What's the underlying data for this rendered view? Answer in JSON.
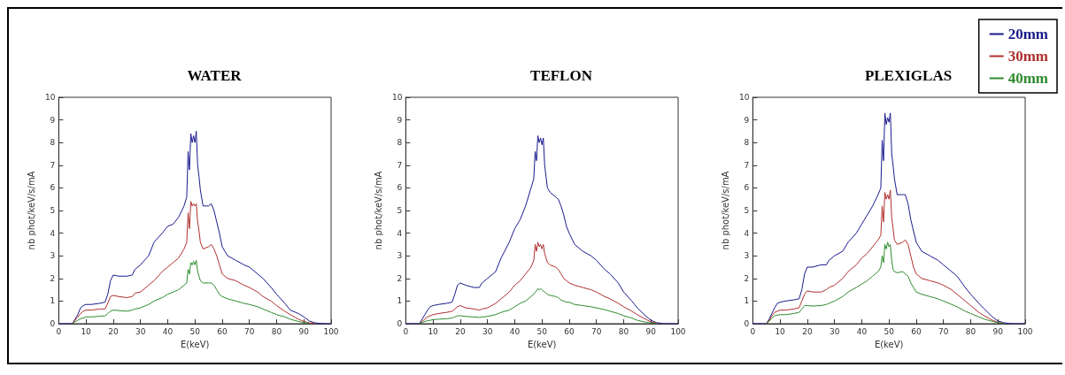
{
  "chart_data": [
    {
      "type": "line",
      "title": "WATER",
      "xlabel": "E(keV)",
      "ylabel": "nb phot/keV/s/mA",
      "xlim": [
        0,
        100
      ],
      "xticks": [
        0,
        10,
        20,
        30,
        40,
        50,
        60,
        70,
        80,
        90,
        100
      ],
      "ylim": [
        0,
        10
      ],
      "yticks": [
        0,
        1,
        2,
        3,
        4,
        5,
        6,
        7,
        8,
        9,
        10
      ],
      "grid": false,
      "legend": false,
      "marker": "none",
      "line_style": "solid",
      "x": [
        0,
        5,
        6,
        7,
        8,
        9,
        10,
        12,
        15,
        17,
        18,
        19,
        20,
        22,
        25,
        27,
        28,
        30,
        33,
        35,
        38,
        40,
        42,
        44,
        46,
        47,
        47.5,
        48,
        48.5,
        49,
        49.5,
        50,
        50.5,
        51,
        51.5,
        52,
        53,
        55,
        56,
        57,
        58,
        59,
        60,
        62,
        65,
        68,
        70,
        73,
        75,
        78,
        80,
        83,
        85,
        88,
        90,
        92,
        94,
        96,
        98,
        100
      ],
      "series": [
        {
          "color": "#1a1a8c",
          "values": [
            0,
            0,
            0.2,
            0.4,
            0.7,
            0.8,
            0.85,
            0.85,
            0.9,
            0.95,
            1.3,
            1.9,
            2.15,
            2.1,
            2.1,
            2.15,
            2.4,
            2.6,
            3.0,
            3.6,
            4.0,
            4.3,
            4.4,
            4.7,
            5.2,
            5.6,
            7.6,
            6.8,
            8.4,
            8.0,
            8.3,
            8.0,
            8.5,
            7.0,
            6.5,
            5.9,
            5.2,
            5.2,
            5.3,
            5.0,
            4.5,
            4.0,
            3.4,
            3.0,
            2.8,
            2.6,
            2.5,
            2.2,
            2.0,
            1.6,
            1.3,
            0.9,
            0.6,
            0.45,
            0.3,
            0.12,
            0.04,
            0.01,
            0,
            0
          ]
        },
        {
          "color": "#b03030",
          "values": [
            null,
            0,
            0.15,
            0.3,
            0.45,
            0.55,
            0.6,
            0.6,
            0.65,
            0.65,
            0.9,
            1.2,
            1.25,
            1.2,
            1.15,
            1.2,
            1.35,
            1.4,
            1.7,
            1.9,
            2.3,
            2.5,
            2.7,
            2.9,
            3.3,
            3.6,
            4.9,
            4.2,
            5.4,
            5.2,
            5.3,
            5.2,
            5.3,
            4.5,
            4.1,
            3.6,
            3.3,
            3.4,
            3.5,
            3.3,
            3.0,
            2.6,
            2.2,
            2.0,
            1.9,
            1.7,
            1.6,
            1.4,
            1.2,
            1.0,
            0.8,
            0.55,
            0.4,
            0.2,
            0.1,
            0.04,
            0.01,
            null,
            null,
            null
          ]
        },
        {
          "color": "#2e8b2e",
          "values": [
            null,
            0,
            0.08,
            0.15,
            0.22,
            0.25,
            0.3,
            0.3,
            0.33,
            0.35,
            0.45,
            0.55,
            0.6,
            0.58,
            0.55,
            0.6,
            0.65,
            0.7,
            0.85,
            1.0,
            1.15,
            1.3,
            1.4,
            1.5,
            1.7,
            1.8,
            2.4,
            2.2,
            2.7,
            2.6,
            2.75,
            2.6,
            2.8,
            2.3,
            2.1,
            1.9,
            1.8,
            1.8,
            1.8,
            1.7,
            1.5,
            1.3,
            1.2,
            1.1,
            1.0,
            0.9,
            0.85,
            0.75,
            0.65,
            0.5,
            0.4,
            0.3,
            0.2,
            0.1,
            0.05,
            0.02,
            null,
            null,
            null,
            null
          ]
        }
      ]
    },
    {
      "type": "line",
      "title": "TEFLON",
      "xlabel": "E(keV)",
      "ylabel": "nb phot/keV/s/mA",
      "xlim": [
        0,
        100
      ],
      "xticks": [
        0,
        10,
        20,
        30,
        40,
        50,
        60,
        70,
        80,
        90,
        100
      ],
      "ylim": [
        0,
        10
      ],
      "yticks": [
        0,
        1,
        2,
        3,
        4,
        5,
        6,
        7,
        8,
        9,
        10
      ],
      "grid": false,
      "legend": false,
      "marker": "none",
      "line_style": "solid",
      "x": [
        0,
        5,
        6,
        7,
        8,
        9,
        10,
        12,
        15,
        17,
        18,
        19,
        20,
        22,
        25,
        27,
        28,
        30,
        33,
        35,
        38,
        40,
        42,
        44,
        46,
        47,
        47.5,
        48,
        48.5,
        49,
        49.5,
        50,
        50.5,
        51,
        51.5,
        52,
        53,
        55,
        56,
        57,
        58,
        59,
        60,
        62,
        65,
        68,
        70,
        73,
        75,
        78,
        80,
        83,
        85,
        88,
        90,
        92,
        94,
        96,
        98,
        100
      ],
      "series": [
        {
          "color": "#1a1a8c",
          "values": [
            0,
            0,
            0.2,
            0.4,
            0.6,
            0.75,
            0.8,
            0.85,
            0.9,
            0.95,
            1.3,
            1.7,
            1.8,
            1.7,
            1.6,
            1.6,
            1.8,
            2.0,
            2.3,
            2.9,
            3.6,
            4.2,
            4.6,
            5.2,
            6.0,
            6.4,
            7.6,
            7.2,
            8.3,
            8.0,
            8.2,
            7.9,
            8.2,
            7.0,
            6.5,
            6.0,
            5.8,
            5.6,
            5.5,
            5.2,
            4.8,
            4.3,
            4.0,
            3.5,
            3.2,
            3.0,
            2.8,
            2.4,
            2.2,
            1.8,
            1.4,
            1.0,
            0.7,
            0.35,
            0.15,
            0.05,
            0.01,
            0,
            0,
            0
          ]
        },
        {
          "color": "#b03030",
          "values": [
            null,
            0,
            0.1,
            0.2,
            0.3,
            0.35,
            0.4,
            0.45,
            0.5,
            0.55,
            0.65,
            0.75,
            0.8,
            0.7,
            0.65,
            0.6,
            0.65,
            0.7,
            0.9,
            1.1,
            1.4,
            1.7,
            1.9,
            2.2,
            2.5,
            2.8,
            3.5,
            3.2,
            3.6,
            3.4,
            3.5,
            3.3,
            3.5,
            3.1,
            2.9,
            2.7,
            2.6,
            2.5,
            2.4,
            2.2,
            2.0,
            1.9,
            1.8,
            1.7,
            1.6,
            1.5,
            1.4,
            1.2,
            1.1,
            0.9,
            0.75,
            0.55,
            0.4,
            0.2,
            0.08,
            0.03,
            null,
            null,
            null,
            null
          ]
        },
        {
          "color": "#2e8b2e",
          "values": [
            null,
            0,
            0.05,
            0.1,
            0.13,
            0.15,
            0.18,
            0.2,
            0.22,
            0.25,
            0.3,
            0.35,
            0.35,
            0.32,
            0.3,
            0.28,
            0.3,
            0.32,
            0.4,
            0.5,
            0.6,
            0.75,
            0.9,
            1.0,
            1.2,
            1.3,
            1.4,
            1.45,
            1.55,
            1.5,
            1.55,
            1.5,
            1.45,
            1.4,
            1.35,
            1.3,
            1.25,
            1.2,
            1.15,
            1.05,
            1.0,
            0.95,
            0.95,
            0.85,
            0.8,
            0.75,
            0.7,
            0.62,
            0.55,
            0.45,
            0.35,
            0.25,
            0.15,
            0.07,
            0.03,
            0.01,
            null,
            null,
            null,
            null
          ]
        }
      ]
    },
    {
      "type": "line",
      "title": "PLEXIGLAS",
      "xlabel": "E(keV)",
      "ylabel": "nb phot/keV/s/mA",
      "xlim": [
        0,
        100
      ],
      "xticks": [
        0,
        10,
        20,
        30,
        40,
        50,
        60,
        70,
        80,
        90,
        100
      ],
      "ylim": [
        0,
        10
      ],
      "yticks": [
        0,
        1,
        2,
        3,
        4,
        5,
        6,
        7,
        8,
        9,
        10
      ],
      "grid": false,
      "legend": "top right",
      "marker": "none",
      "line_style": "solid",
      "x": [
        0,
        5,
        6,
        7,
        8,
        9,
        10,
        12,
        15,
        17,
        18,
        19,
        20,
        22,
        25,
        27,
        28,
        30,
        33,
        35,
        38,
        40,
        42,
        44,
        46,
        47,
        47.5,
        48,
        48.5,
        49,
        49.5,
        50,
        50.5,
        51,
        51.5,
        52,
        53,
        55,
        56,
        57,
        58,
        59,
        60,
        62,
        65,
        68,
        70,
        73,
        75,
        78,
        80,
        83,
        85,
        88,
        90,
        92,
        94,
        96,
        98,
        100
      ],
      "series": [
        {
          "name": "20mm",
          "color": "#1a1a8c",
          "values": [
            0,
            0,
            0.2,
            0.45,
            0.7,
            0.9,
            0.95,
            1.0,
            1.05,
            1.1,
            1.5,
            2.2,
            2.5,
            2.5,
            2.6,
            2.6,
            2.8,
            3.0,
            3.2,
            3.6,
            4.0,
            4.4,
            4.8,
            5.2,
            5.7,
            6.0,
            8.1,
            7.2,
            9.3,
            8.8,
            9.1,
            8.9,
            9.3,
            7.5,
            7.0,
            6.4,
            5.7,
            5.7,
            5.7,
            5.3,
            4.6,
            4.1,
            3.6,
            3.2,
            3.0,
            2.8,
            2.6,
            2.3,
            2.1,
            1.6,
            1.3,
            0.9,
            0.65,
            0.3,
            0.12,
            0.05,
            0.01,
            0,
            0,
            0
          ]
        },
        {
          "name": "30mm",
          "color": "#b03030",
          "values": [
            null,
            0,
            0.15,
            0.35,
            0.5,
            0.55,
            0.6,
            0.6,
            0.65,
            0.7,
            1.0,
            1.3,
            1.45,
            1.4,
            1.4,
            1.5,
            1.6,
            1.7,
            2.0,
            2.3,
            2.6,
            2.9,
            3.1,
            3.4,
            3.7,
            3.9,
            5.2,
            4.5,
            5.8,
            5.5,
            5.7,
            5.5,
            5.9,
            4.7,
            4.2,
            3.7,
            3.5,
            3.6,
            3.7,
            3.5,
            3.0,
            2.5,
            2.2,
            2.0,
            1.9,
            1.8,
            1.7,
            1.5,
            1.3,
            1.0,
            0.8,
            0.5,
            0.35,
            0.15,
            0.06,
            0.02,
            null,
            null,
            null,
            null
          ]
        },
        {
          "name": "40mm",
          "color": "#2e8b2e",
          "values": [
            null,
            0,
            0.1,
            0.25,
            0.35,
            0.38,
            0.4,
            0.4,
            0.45,
            0.5,
            0.65,
            0.8,
            0.8,
            0.78,
            0.8,
            0.85,
            0.9,
            1.0,
            1.2,
            1.4,
            1.6,
            1.75,
            1.9,
            2.1,
            2.3,
            2.5,
            3.0,
            2.7,
            3.5,
            3.3,
            3.6,
            3.4,
            3.5,
            2.8,
            2.4,
            2.3,
            2.25,
            2.3,
            2.2,
            2.1,
            1.8,
            1.6,
            1.4,
            1.3,
            1.2,
            1.1,
            1.0,
            0.85,
            0.75,
            0.55,
            0.45,
            0.3,
            0.2,
            0.1,
            0.04,
            0.01,
            null,
            null,
            null,
            null
          ]
        }
      ]
    }
  ]
}
